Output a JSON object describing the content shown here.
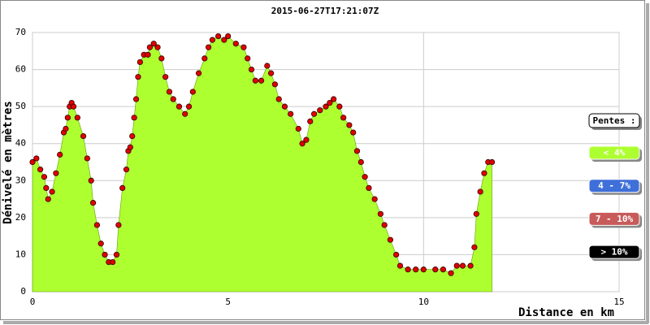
{
  "chart_data": {
    "type": "area",
    "title": "2015-06-27T17:21:07Z",
    "x_label": "Distance en km",
    "y_label": "Dénivelé en mètres",
    "x": [
      0.0,
      0.1,
      0.2,
      0.3,
      0.35,
      0.4,
      0.5,
      0.6,
      0.7,
      0.8,
      0.85,
      0.9,
      0.95,
      1.0,
      1.05,
      1.15,
      1.3,
      1.4,
      1.5,
      1.55,
      1.65,
      1.75,
      1.85,
      1.95,
      2.05,
      2.15,
      2.2,
      2.3,
      2.4,
      2.45,
      2.5,
      2.55,
      2.6,
      2.65,
      2.7,
      2.75,
      2.85,
      2.95,
      3.0,
      3.1,
      3.2,
      3.3,
      3.4,
      3.5,
      3.6,
      3.75,
      3.9,
      4.0,
      4.1,
      4.25,
      4.4,
      4.5,
      4.6,
      4.75,
      4.9,
      5.0,
      5.2,
      5.4,
      5.5,
      5.6,
      5.7,
      5.85,
      6.0,
      6.1,
      6.2,
      6.3,
      6.45,
      6.6,
      6.8,
      6.9,
      7.0,
      7.1,
      7.2,
      7.35,
      7.5,
      7.6,
      7.7,
      7.85,
      7.95,
      8.1,
      8.2,
      8.3,
      8.4,
      8.5,
      8.6,
      8.75,
      8.9,
      9.0,
      9.15,
      9.3,
      9.4,
      9.6,
      9.8,
      10.0,
      10.3,
      10.5,
      10.7,
      10.85,
      11.0,
      11.2,
      11.3,
      11.35,
      11.45,
      11.55,
      11.65,
      11.75
    ],
    "values": [
      35,
      36,
      33,
      31,
      28,
      25,
      27,
      32,
      37,
      43,
      44,
      47,
      50,
      51,
      50,
      47,
      42,
      36,
      30,
      24,
      18,
      13,
      10,
      8,
      8,
      10,
      18,
      28,
      33,
      38,
      39,
      42,
      47,
      52,
      58,
      62,
      64,
      64,
      66,
      67,
      66,
      63,
      58,
      54,
      52,
      50,
      48,
      50,
      54,
      59,
      63,
      66,
      68,
      69,
      68,
      69,
      67,
      66,
      63,
      60,
      57,
      57,
      61,
      59,
      56,
      52,
      50,
      48,
      44,
      40,
      41,
      46,
      48,
      49,
      50,
      51,
      52,
      50,
      47,
      45,
      43,
      38,
      35,
      31,
      28,
      25,
      21,
      18,
      14,
      10,
      7,
      6,
      6,
      6,
      6,
      6,
      5,
      7,
      7,
      7,
      12,
      21,
      27,
      32,
      35,
      35
    ],
    "color": "#adff2f",
    "point_color": "#e00000",
    "xlim": [
      0,
      15
    ],
    "xticks": [
      0,
      5,
      10,
      15
    ],
    "ylim": [
      0,
      70
    ],
    "yticks": [
      0,
      10,
      20,
      30,
      40,
      50,
      60,
      70
    ],
    "grid": true,
    "legend_title": "Pentes :",
    "legend": [
      {
        "label": "< 4%",
        "color": "#adff2f"
      },
      {
        "label": "4 - 7%",
        "color": "#3f6fd8"
      },
      {
        "label": "7 - 10%",
        "color": "#c85a5a"
      },
      {
        "label": "> 10%",
        "color": "#000000"
      }
    ]
  }
}
